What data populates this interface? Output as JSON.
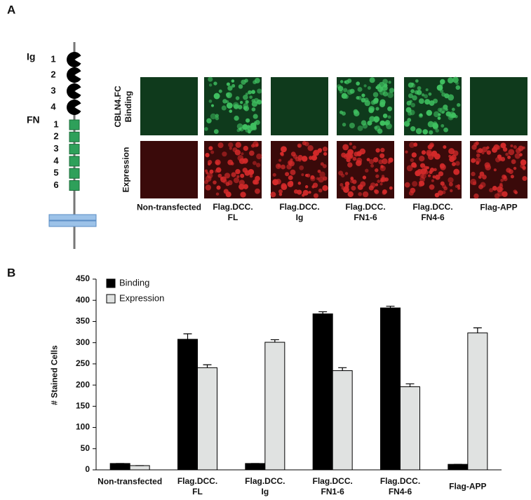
{
  "panel_a": {
    "label": "A",
    "domain_labels": {
      "ig": "Ig",
      "ig_numbers": [
        "1",
        "2",
        "3",
        "4"
      ],
      "fn": "FN",
      "fn_numbers": [
        "1",
        "2",
        "3",
        "4",
        "5",
        "6"
      ]
    },
    "row_labels": [
      "CBLN4.FC\nBinding",
      "Expression"
    ],
    "column_labels": [
      "Non-transfected",
      "Flag.DCC.\nFL",
      "Flag.DCC.\nIg",
      "Flag.DCC.\nFN1-6",
      "Flag.DCC.\nFN4-6",
      "Flag-APP"
    ]
  },
  "panel_b": {
    "label": "B"
  },
  "chart_data": {
    "type": "bar",
    "ylabel": "# Stained Cells",
    "categories": [
      "Non-transfected",
      "Flag.DCC.\nFL",
      "Flag.DCC.\nIg",
      "Flag.DCC.\nFN1-6",
      "Flag.DCC.\nFN4-6",
      "Flag-APP"
    ],
    "series": [
      {
        "name": "Binding",
        "color": "#000000",
        "values": [
          15,
          308,
          15,
          368,
          382,
          13
        ],
        "errors": [
          0,
          13,
          0,
          5,
          4,
          0
        ]
      },
      {
        "name": "Expression",
        "color": "#e0e2e1",
        "values": [
          10,
          241,
          301,
          234,
          196,
          323
        ],
        "errors": [
          0,
          7,
          6,
          7,
          7,
          12
        ]
      }
    ],
    "ylim": [
      0,
      450
    ],
    "yticks": [
      0,
      50,
      100,
      150,
      200,
      250,
      300,
      350,
      400,
      450
    ],
    "legend": "upper-left"
  }
}
